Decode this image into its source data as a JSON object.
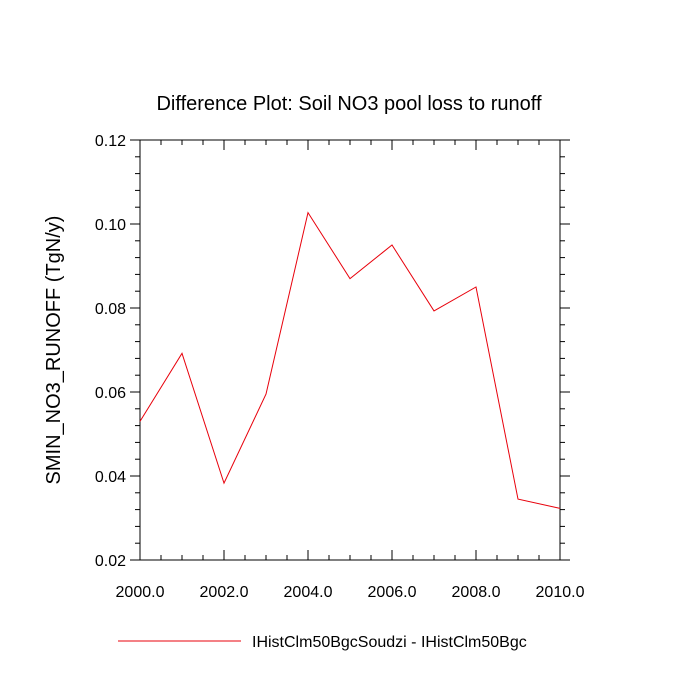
{
  "chart_data": {
    "type": "line",
    "title": "Difference Plot: Soil NO3 pool loss to runoff",
    "xlabel": "",
    "ylabel": "SMIN_NO3_RUNOFF  (TgN/y)",
    "x": [
      2000,
      2001,
      2002,
      2003,
      2004,
      2005,
      2006,
      2007,
      2008,
      2009,
      2010
    ],
    "xlim": [
      2000,
      2010
    ],
    "ylim": [
      0.02,
      0.12
    ],
    "x_ticks": [
      2000,
      2002,
      2004,
      2006,
      2008,
      2010
    ],
    "x_tick_labels": [
      "2000.0",
      "2002.0",
      "2004.0",
      "2006.0",
      "2008.0",
      "2010.0"
    ],
    "y_ticks": [
      0.02,
      0.04,
      0.06,
      0.08,
      0.1,
      0.12
    ],
    "y_tick_labels": [
      "0.02",
      "0.04",
      "0.06",
      "0.08",
      "0.10",
      "0.12"
    ],
    "grid": false,
    "legend_position": "bottom",
    "series": [
      {
        "name": "IHistClm50BgcSoudzi - IHistClm50Bgc",
        "color": "#e8000b",
        "values": [
          0.053,
          0.0692,
          0.0383,
          0.0595,
          0.1027,
          0.087,
          0.095,
          0.0793,
          0.085,
          0.0345,
          0.0323
        ]
      }
    ]
  }
}
